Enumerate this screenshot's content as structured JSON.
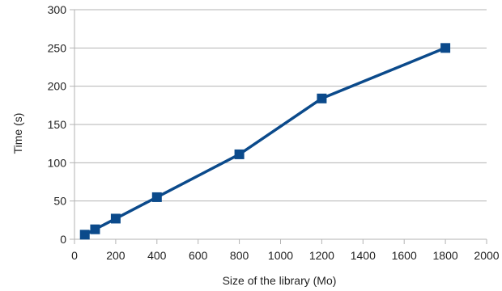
{
  "chart_data": {
    "type": "line",
    "title": "",
    "xlabel": "Size of the library (Mo)",
    "ylabel": "Time (s)",
    "xlim": [
      0,
      2000
    ],
    "ylim": [
      0,
      300
    ],
    "x_ticks": [
      0,
      200,
      400,
      600,
      800,
      1000,
      1200,
      1400,
      1600,
      1800,
      2000
    ],
    "y_ticks": [
      0,
      50,
      100,
      150,
      200,
      250,
      300
    ],
    "grid": "horizontal",
    "legend": "none",
    "series": [
      {
        "marker": "square",
        "color": "#0b4a8b",
        "x": [
          50,
          100,
          200,
          400,
          800,
          1200,
          1800
        ],
        "y": [
          6,
          13,
          27,
          55,
          111,
          184,
          250
        ]
      }
    ]
  }
}
